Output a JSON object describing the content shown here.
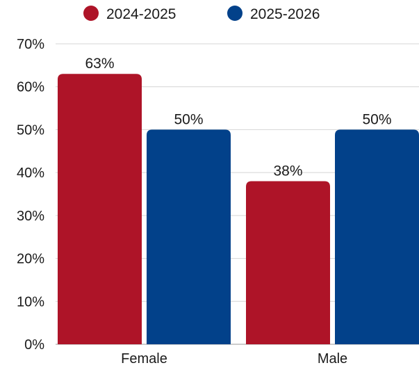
{
  "chart_data": {
    "type": "bar",
    "categories": [
      "Female",
      "Male"
    ],
    "series": [
      {
        "name": "2024-2025",
        "values": [
          63,
          38
        ],
        "color": "#ae1428"
      },
      {
        "name": "2025-2026",
        "values": [
          50,
          50
        ],
        "color": "#02418a"
      }
    ],
    "value_labels": [
      [
        "63%",
        "38%"
      ],
      [
        "50%",
        "50%"
      ]
    ],
    "ylim": [
      0,
      70
    ],
    "y_ticks": [
      0,
      10,
      20,
      30,
      40,
      50,
      60,
      70
    ],
    "y_tick_labels": [
      "0%",
      "10%",
      "20%",
      "30%",
      "40%",
      "50%",
      "60%",
      "70%"
    ],
    "grid": true,
    "legend_position": "top-center",
    "title": "",
    "xlabel": "",
    "ylabel": ""
  }
}
